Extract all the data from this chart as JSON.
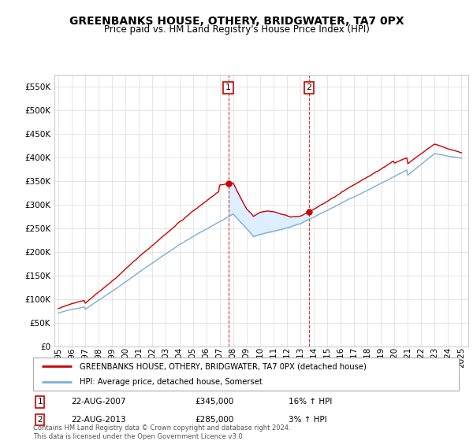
{
  "title": "GREENBANKS HOUSE, OTHERY, BRIDGWATER, TA7 0PX",
  "subtitle": "Price paid vs. HM Land Registry's House Price Index (HPI)",
  "years": [
    1995.0,
    1995.08,
    1995.17,
    1995.25,
    1995.33,
    1995.42,
    1995.5,
    1995.58,
    1995.67,
    1995.75,
    1995.83,
    1995.92,
    1996.0,
    1996.08,
    1996.17,
    1996.25,
    1996.33,
    1996.42,
    1996.5,
    1996.58,
    1996.67,
    1996.75,
    1996.83,
    1996.92,
    1997.0,
    1997.08,
    1997.17,
    1997.25,
    1997.33,
    1997.42,
    1997.5,
    1997.58,
    1997.67,
    1997.75,
    1997.83,
    1997.92,
    1998.0,
    1998.08,
    1998.17,
    1998.25,
    1998.33,
    1998.42,
    1998.5,
    1998.58,
    1998.67,
    1998.75,
    1998.83,
    1998.92,
    1999.0,
    1999.08,
    1999.17,
    1999.25,
    1999.33,
    1999.42,
    1999.5,
    1999.58,
    1999.67,
    1999.75,
    1999.83,
    1999.92,
    2000.0,
    2000.08,
    2000.17,
    2000.25,
    2000.33,
    2000.42,
    2000.5,
    2000.58,
    2000.67,
    2000.75,
    2000.83,
    2000.92,
    2001.0,
    2001.08,
    2001.17,
    2001.25,
    2001.33,
    2001.42,
    2001.5,
    2001.58,
    2001.67,
    2001.75,
    2001.83,
    2001.92,
    2002.0,
    2002.08,
    2002.17,
    2002.25,
    2002.33,
    2002.42,
    2002.5,
    2002.58,
    2002.67,
    2002.75,
    2002.83,
    2002.92,
    2003.0,
    2003.08,
    2003.17,
    2003.25,
    2003.33,
    2003.42,
    2003.5,
    2003.58,
    2003.67,
    2003.75,
    2003.83,
    2003.92,
    2004.0,
    2004.08,
    2004.17,
    2004.25,
    2004.33,
    2004.42,
    2004.5,
    2004.58,
    2004.67,
    2004.75,
    2004.83,
    2004.92,
    2005.0,
    2005.08,
    2005.17,
    2005.25,
    2005.33,
    2005.42,
    2005.5,
    2005.58,
    2005.67,
    2005.75,
    2005.83,
    2005.92,
    2006.0,
    2006.08,
    2006.17,
    2006.25,
    2006.33,
    2006.42,
    2006.5,
    2006.58,
    2006.67,
    2006.75,
    2006.83,
    2006.92,
    2007.0,
    2007.08,
    2007.17,
    2007.25,
    2007.33,
    2007.42,
    2007.5,
    2007.58,
    2007.67,
    2007.75,
    2007.83,
    2007.92,
    2008.0,
    2008.08,
    2008.17,
    2008.25,
    2008.33,
    2008.42,
    2008.5,
    2008.58,
    2008.67,
    2008.75,
    2008.83,
    2008.92,
    2009.0,
    2009.08,
    2009.17,
    2009.25,
    2009.33,
    2009.42,
    2009.5,
    2009.58,
    2009.67,
    2009.75,
    2009.83,
    2009.92,
    2010.0,
    2010.08,
    2010.17,
    2010.25,
    2010.33,
    2010.42,
    2010.5,
    2010.58,
    2010.67,
    2010.75,
    2010.83,
    2010.92,
    2011.0,
    2011.08,
    2011.17,
    2011.25,
    2011.33,
    2011.42,
    2011.5,
    2011.58,
    2011.67,
    2011.75,
    2011.83,
    2011.92,
    2012.0,
    2012.08,
    2012.17,
    2012.25,
    2012.33,
    2012.42,
    2012.5,
    2012.58,
    2012.67,
    2012.75,
    2012.83,
    2012.92,
    2013.0,
    2013.08,
    2013.17,
    2013.25,
    2013.33,
    2013.42,
    2013.5,
    2013.58,
    2013.67,
    2013.75,
    2013.83,
    2013.92,
    2014.0,
    2014.08,
    2014.17,
    2014.25,
    2014.33,
    2014.42,
    2014.5,
    2014.58,
    2014.67,
    2014.75,
    2014.83,
    2014.92,
    2015.0,
    2015.08,
    2015.17,
    2015.25,
    2015.33,
    2015.42,
    2015.5,
    2015.58,
    2015.67,
    2015.75,
    2015.83,
    2015.92,
    2016.0,
    2016.08,
    2016.17,
    2016.25,
    2016.33,
    2016.42,
    2016.5,
    2016.58,
    2016.67,
    2016.75,
    2016.83,
    2016.92,
    2017.0,
    2017.08,
    2017.17,
    2017.25,
    2017.33,
    2017.42,
    2017.5,
    2017.58,
    2017.67,
    2017.75,
    2017.83,
    2017.92,
    2018.0,
    2018.08,
    2018.17,
    2018.25,
    2018.33,
    2018.42,
    2018.5,
    2018.58,
    2018.67,
    2018.75,
    2018.83,
    2018.92,
    2019.0,
    2019.08,
    2019.17,
    2019.25,
    2019.33,
    2019.42,
    2019.5,
    2019.58,
    2019.67,
    2019.75,
    2019.83,
    2019.92,
    2020.0,
    2020.08,
    2020.17,
    2020.25,
    2020.33,
    2020.42,
    2020.5,
    2020.58,
    2020.67,
    2020.75,
    2020.83,
    2020.92,
    2021.0,
    2021.08,
    2021.17,
    2021.25,
    2021.33,
    2021.42,
    2021.5,
    2021.58,
    2021.67,
    2021.75,
    2021.83,
    2021.92,
    2022.0,
    2022.08,
    2022.17,
    2022.25,
    2022.33,
    2022.42,
    2022.5,
    2022.58,
    2022.67,
    2022.75,
    2022.83,
    2022.92,
    2023.0,
    2023.08,
    2023.17,
    2023.25,
    2023.33,
    2023.42,
    2023.5,
    2023.58,
    2023.67,
    2023.75,
    2023.83,
    2023.92,
    2024.0,
    2024.08,
    2024.17,
    2024.25,
    2024.33,
    2024.42,
    2024.5,
    2024.58,
    2024.67,
    2024.75,
    2024.83,
    2024.92,
    2025.0
  ],
  "sale1_year": 2007.65,
  "sale1_price": 345000,
  "sale2_year": 2013.65,
  "sale2_price": 285000,
  "ylim": [
    0,
    575000
  ],
  "xlim_left": 1994.7,
  "xlim_right": 2025.5,
  "ylabel_ticks": [
    0,
    50000,
    100000,
    150000,
    200000,
    250000,
    300000,
    350000,
    400000,
    450000,
    500000,
    550000
  ],
  "ylabel_labels": [
    "£0",
    "£50K",
    "£100K",
    "£150K",
    "£200K",
    "£250K",
    "£300K",
    "£350K",
    "£400K",
    "£450K",
    "£500K",
    "£550K"
  ],
  "xtick_years": [
    1995,
    1996,
    1997,
    1998,
    1999,
    2000,
    2001,
    2002,
    2003,
    2004,
    2005,
    2006,
    2007,
    2008,
    2009,
    2010,
    2011,
    2012,
    2013,
    2014,
    2015,
    2016,
    2017,
    2018,
    2019,
    2020,
    2021,
    2022,
    2023,
    2024,
    2025
  ],
  "red_color": "#cc0000",
  "blue_color": "#7bafd4",
  "shade_color": "#ddeeff",
  "grid_color": "#e0e0e0",
  "legend_label_red": "GREENBANKS HOUSE, OTHERY, BRIDGWATER, TA7 0PX (detached house)",
  "legend_label_blue": "HPI: Average price, detached house, Somerset",
  "note1_date": "22-AUG-2007",
  "note1_price": "£345,000",
  "note1_hpi": "16% ↑ HPI",
  "note2_date": "22-AUG-2013",
  "note2_price": "£285,000",
  "note2_hpi": "3% ↑ HPI",
  "copyright": "Contains HM Land Registry data © Crown copyright and database right 2024.\nThis data is licensed under the Open Government Licence v3.0."
}
